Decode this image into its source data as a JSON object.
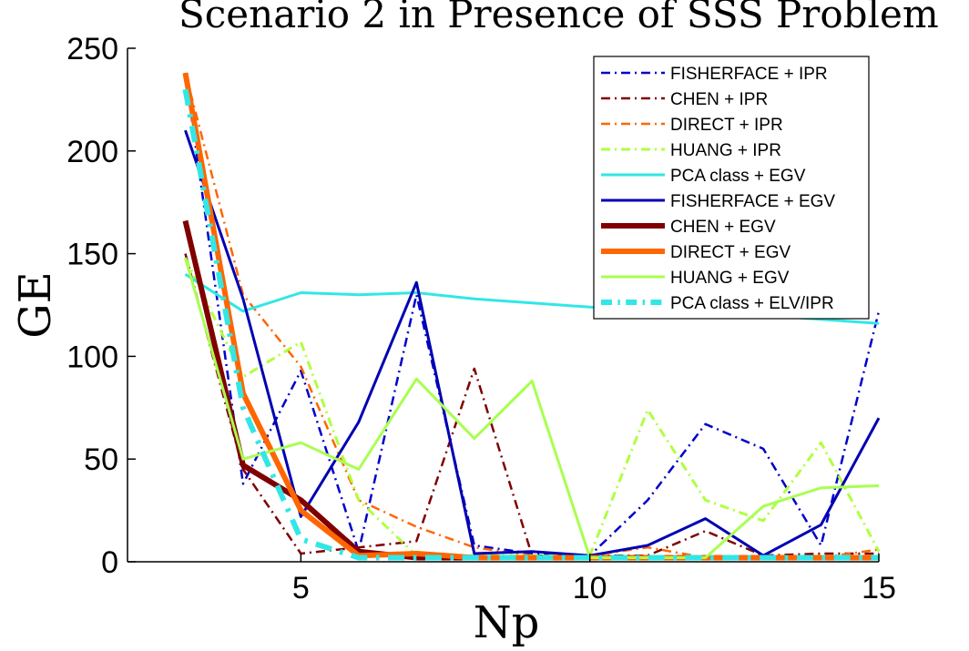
{
  "chart_data": {
    "type": "line",
    "title": "Scenario 2 in Presence of SSS Problem",
    "xlabel": "Np",
    "ylabel": "GE",
    "xlim": [
      2,
      15
    ],
    "ylim": [
      0,
      250
    ],
    "xticks": [
      5,
      10,
      15
    ],
    "yticks": [
      0,
      50,
      100,
      150,
      200,
      250
    ],
    "grid": false,
    "legend_position": "top-right",
    "x": [
      3,
      4,
      5,
      6,
      7,
      8,
      9,
      10,
      11,
      12,
      13,
      14,
      15
    ],
    "series": [
      {
        "name": "FISHERFACE + IPR",
        "color": "#0000cc",
        "style": "dashdot",
        "width": 2.5,
        "values": [
          238,
          38,
          93,
          5,
          130,
          8,
          4,
          3,
          30,
          67,
          55,
          8,
          122
        ]
      },
      {
        "name": "CHEN + IPR",
        "color": "#800000",
        "style": "dashdot",
        "width": 2.5,
        "values": [
          150,
          45,
          4,
          7,
          10,
          94,
          3,
          3,
          3,
          15,
          3,
          4,
          4
        ]
      },
      {
        "name": "DIRECT + IPR",
        "color": "#ff6600",
        "style": "dashdot",
        "width": 2.5,
        "values": [
          238,
          130,
          95,
          30,
          17,
          7,
          3,
          3,
          7,
          2,
          2,
          2,
          6
        ]
      },
      {
        "name": "HUANG + IPR",
        "color": "#b0ff40",
        "style": "dashdot",
        "width": 3,
        "values": [
          148,
          90,
          107,
          30,
          3,
          3,
          3,
          3,
          74,
          30,
          20,
          58,
          5
        ]
      },
      {
        "name": "PCA class + EGV",
        "color": "#33e6e6",
        "style": "solid",
        "width": 3,
        "values": [
          140,
          122,
          131,
          130,
          131,
          128,
          126,
          124,
          122,
          120,
          120,
          118,
          116
        ]
      },
      {
        "name": "FISHERFACE + EGV",
        "color": "#0000b3",
        "style": "solid",
        "width": 3,
        "values": [
          210,
          128,
          22,
          68,
          136,
          4,
          5,
          3,
          8,
          21,
          3,
          18,
          70
        ]
      },
      {
        "name": "CHEN + EGV",
        "color": "#800000",
        "style": "solid",
        "width": 6,
        "values": [
          166,
          47,
          30,
          5,
          2,
          2,
          2,
          2,
          2,
          2,
          2,
          2,
          2
        ]
      },
      {
        "name": "DIRECT + EGV",
        "color": "#ff6600",
        "style": "solid",
        "width": 6,
        "values": [
          238,
          82,
          25,
          3,
          4,
          2,
          2,
          2,
          2,
          2,
          2,
          2,
          2
        ]
      },
      {
        "name": "HUANG + EGV",
        "color": "#a8ff50",
        "style": "solid",
        "width": 3,
        "values": [
          148,
          50,
          58,
          45,
          89,
          60,
          88,
          2,
          2,
          2,
          27,
          36,
          37
        ]
      },
      {
        "name": "PCA class + ELV/IPR",
        "color": "#33e6e6",
        "style": "dashdot",
        "width": 6,
        "values": [
          230,
          75,
          11,
          2,
          2,
          2,
          2,
          2,
          2,
          2,
          2,
          2,
          2
        ]
      }
    ]
  }
}
